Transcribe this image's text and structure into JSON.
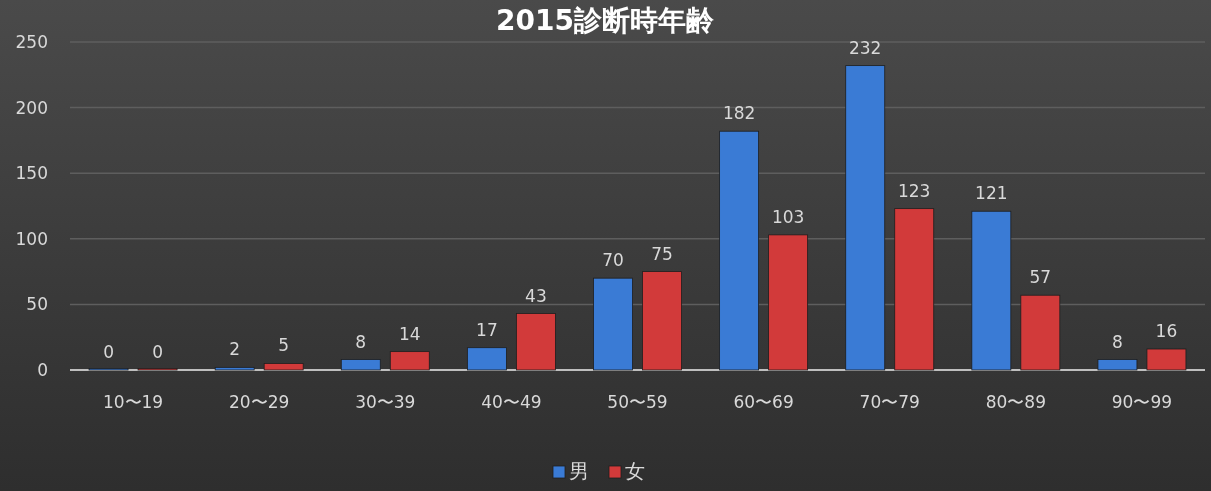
{
  "chart_data": {
    "type": "bar",
    "title": "2015診断時年齢",
    "categories": [
      "10〜19",
      "20〜29",
      "30〜39",
      "40〜49",
      "50〜59",
      "60〜69",
      "70〜79",
      "80〜89",
      "90〜99"
    ],
    "series": [
      {
        "name": "男",
        "color": "#3a7bd5",
        "values": [
          0,
          2,
          8,
          17,
          70,
          182,
          232,
          121,
          8
        ]
      },
      {
        "name": "女",
        "color": "#d23a3a",
        "values": [
          0,
          5,
          14,
          43,
          75,
          103,
          123,
          57,
          16
        ]
      }
    ],
    "ylim": [
      0,
      250
    ],
    "yticks": [
      0,
      50,
      100,
      150,
      200,
      250
    ],
    "grid": "y",
    "legend": "bottom",
    "data_labels": true
  }
}
